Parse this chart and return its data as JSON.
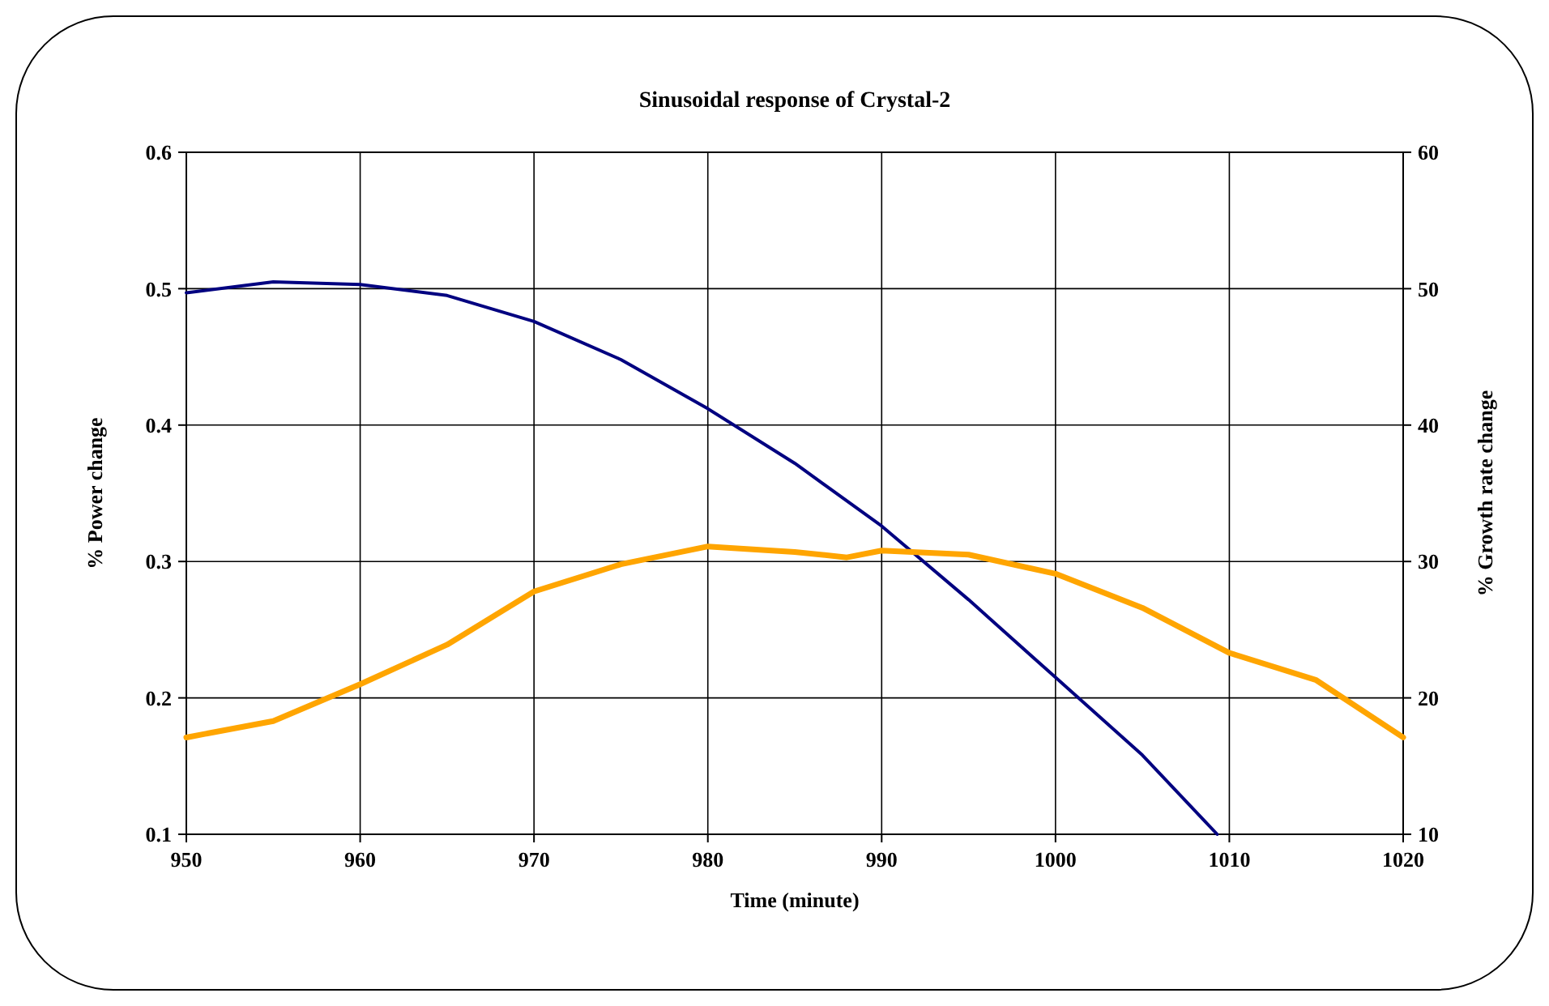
{
  "chart_data": {
    "type": "line",
    "title": "Sinusoidal response of Crystal-2",
    "xlabel": "Time (minute)",
    "ylabel": "% Power change",
    "y2label": "% Growth rate change",
    "xlim": [
      950,
      1020
    ],
    "xticks": [
      950,
      960,
      970,
      980,
      990,
      1000,
      1010,
      1020
    ],
    "ylim": [
      0.1,
      0.6
    ],
    "yticks": [
      0.1,
      0.2,
      0.3,
      0.4,
      0.5,
      0.6
    ],
    "y2lim": [
      10,
      60
    ],
    "y2ticks": [
      10,
      20,
      30,
      40,
      50,
      60
    ],
    "grid": true,
    "marker": "none",
    "line_style": "solid",
    "series": [
      {
        "color": "#000080",
        "x": [
          950,
          955,
          960,
          965,
          970,
          975,
          980,
          985,
          990,
          995,
          1000,
          1005,
          1009.3
        ],
        "values": [
          0.497,
          0.505,
          0.503,
          0.495,
          0.476,
          0.448,
          0.412,
          0.372,
          0.326,
          0.272,
          0.215,
          0.158,
          0.1
        ]
      },
      {
        "color": "#ffa500",
        "axis": "y2",
        "x": [
          950,
          955,
          960,
          965,
          970,
          975,
          980,
          985,
          988,
          990,
          995,
          1000,
          1005,
          1010,
          1015,
          1020
        ],
        "values": [
          17.1,
          18.3,
          21.0,
          23.9,
          27.8,
          29.8,
          31.1,
          30.7,
          30.3,
          30.8,
          30.5,
          29.1,
          26.6,
          23.3,
          21.3,
          17.1
        ]
      }
    ]
  }
}
